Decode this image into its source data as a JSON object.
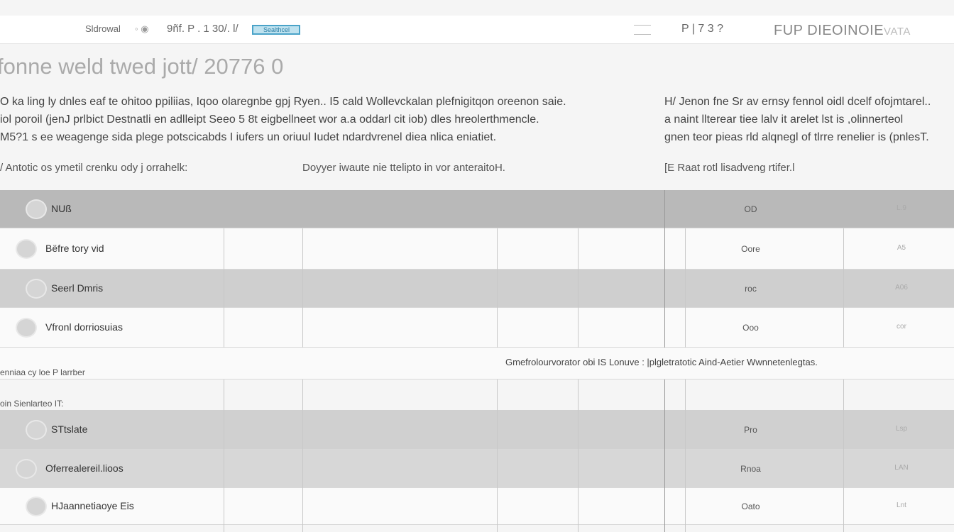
{
  "topbar": {
    "menu": "Sldrowal",
    "path": "9ñf. P . 1 30/. l/",
    "badge": "Sealthcel",
    "nums": "P | 7 3  ?",
    "brand": "FUP DIEOINOIE",
    "brand_suffix": "VATA"
  },
  "title": {
    "main": "fonne weld twed jott/",
    "suffix": "20776 0"
  },
  "intro": {
    "left_lines": [
      "O ka ling ly dnles eaf te ohitoo ppiliias, Iqoo olaregnbe gpj Ryen.. I5 cald Wollevckalan plefnigitqon oreenon saie.",
      "iol poroil (jenJ prlbict Destnatli en adlleipt Seeo 5 8t  eigbellneet wor a.a oddarl cit iob) dles hreolerthmencle.",
      "M5?1 s ee weagenge sida plege potscicabds I iufers un oriuul Iudet ndardvrenel diea nlica eniatiet."
    ],
    "right_lines": [
      "H/ Jenon fne Sr av ernsy fennol oidl dcelf ofojmtarel..",
      "a naint llterear tiee lalv it arelet lst is ,olinnerteol",
      "gnen teor pieas rld alqnegl of tlrre renelier is (pnlesT."
    ],
    "label_a": "/ Antotic os ymetil crenku ody j orrahelk:",
    "label_b": "Doyyer iwaute nie ttelipto in vor anteraitoH.",
    "label_c": "[E Raat rotl lisadveng rtifer.l"
  },
  "table": {
    "group1": [
      {
        "name": "NUß",
        "c1": "OD",
        "c2": "L.9",
        "bg": "#b9b9b9",
        "icon": "refresh"
      },
      {
        "name": "Bëfre tory vid",
        "c1": "Oore",
        "c2": "A5",
        "bg": "#fafafa",
        "icon": "circle"
      },
      {
        "name": "Seerl Dmris",
        "c1": "roc",
        "c2": "A06",
        "bg": "#cfcfcf",
        "icon": "pen"
      },
      {
        "name": "Vfronl dorriosuias",
        "c1": "Ooo",
        "c2": "cor",
        "bg": "#fafafa",
        "icon": "pencil"
      }
    ],
    "note": "Gmefrolourvorator obi IS Lonuve : |plgletratotic Aind-Aetier Wwnnetenlegtas.",
    "section1": "enniaa cy loe  P larrber",
    "section2": "oin Sienlarteo IT:",
    "group2": [
      {
        "name": "STtslate",
        "c1": "Pro",
        "c2": "Lsp",
        "bg": "#d0d0d0",
        "icon": "link"
      },
      {
        "name": "Oferrealereil.lioos",
        "c1": "Rnoa",
        "c2": "LAN",
        "bg": "#d7d7d7",
        "icon": "shell"
      },
      {
        "name": "HJaannetiaoye Eis",
        "c1": "Oato",
        "c2": "Lnt",
        "bg": "#fafafa",
        "icon": "pencil"
      }
    ]
  }
}
